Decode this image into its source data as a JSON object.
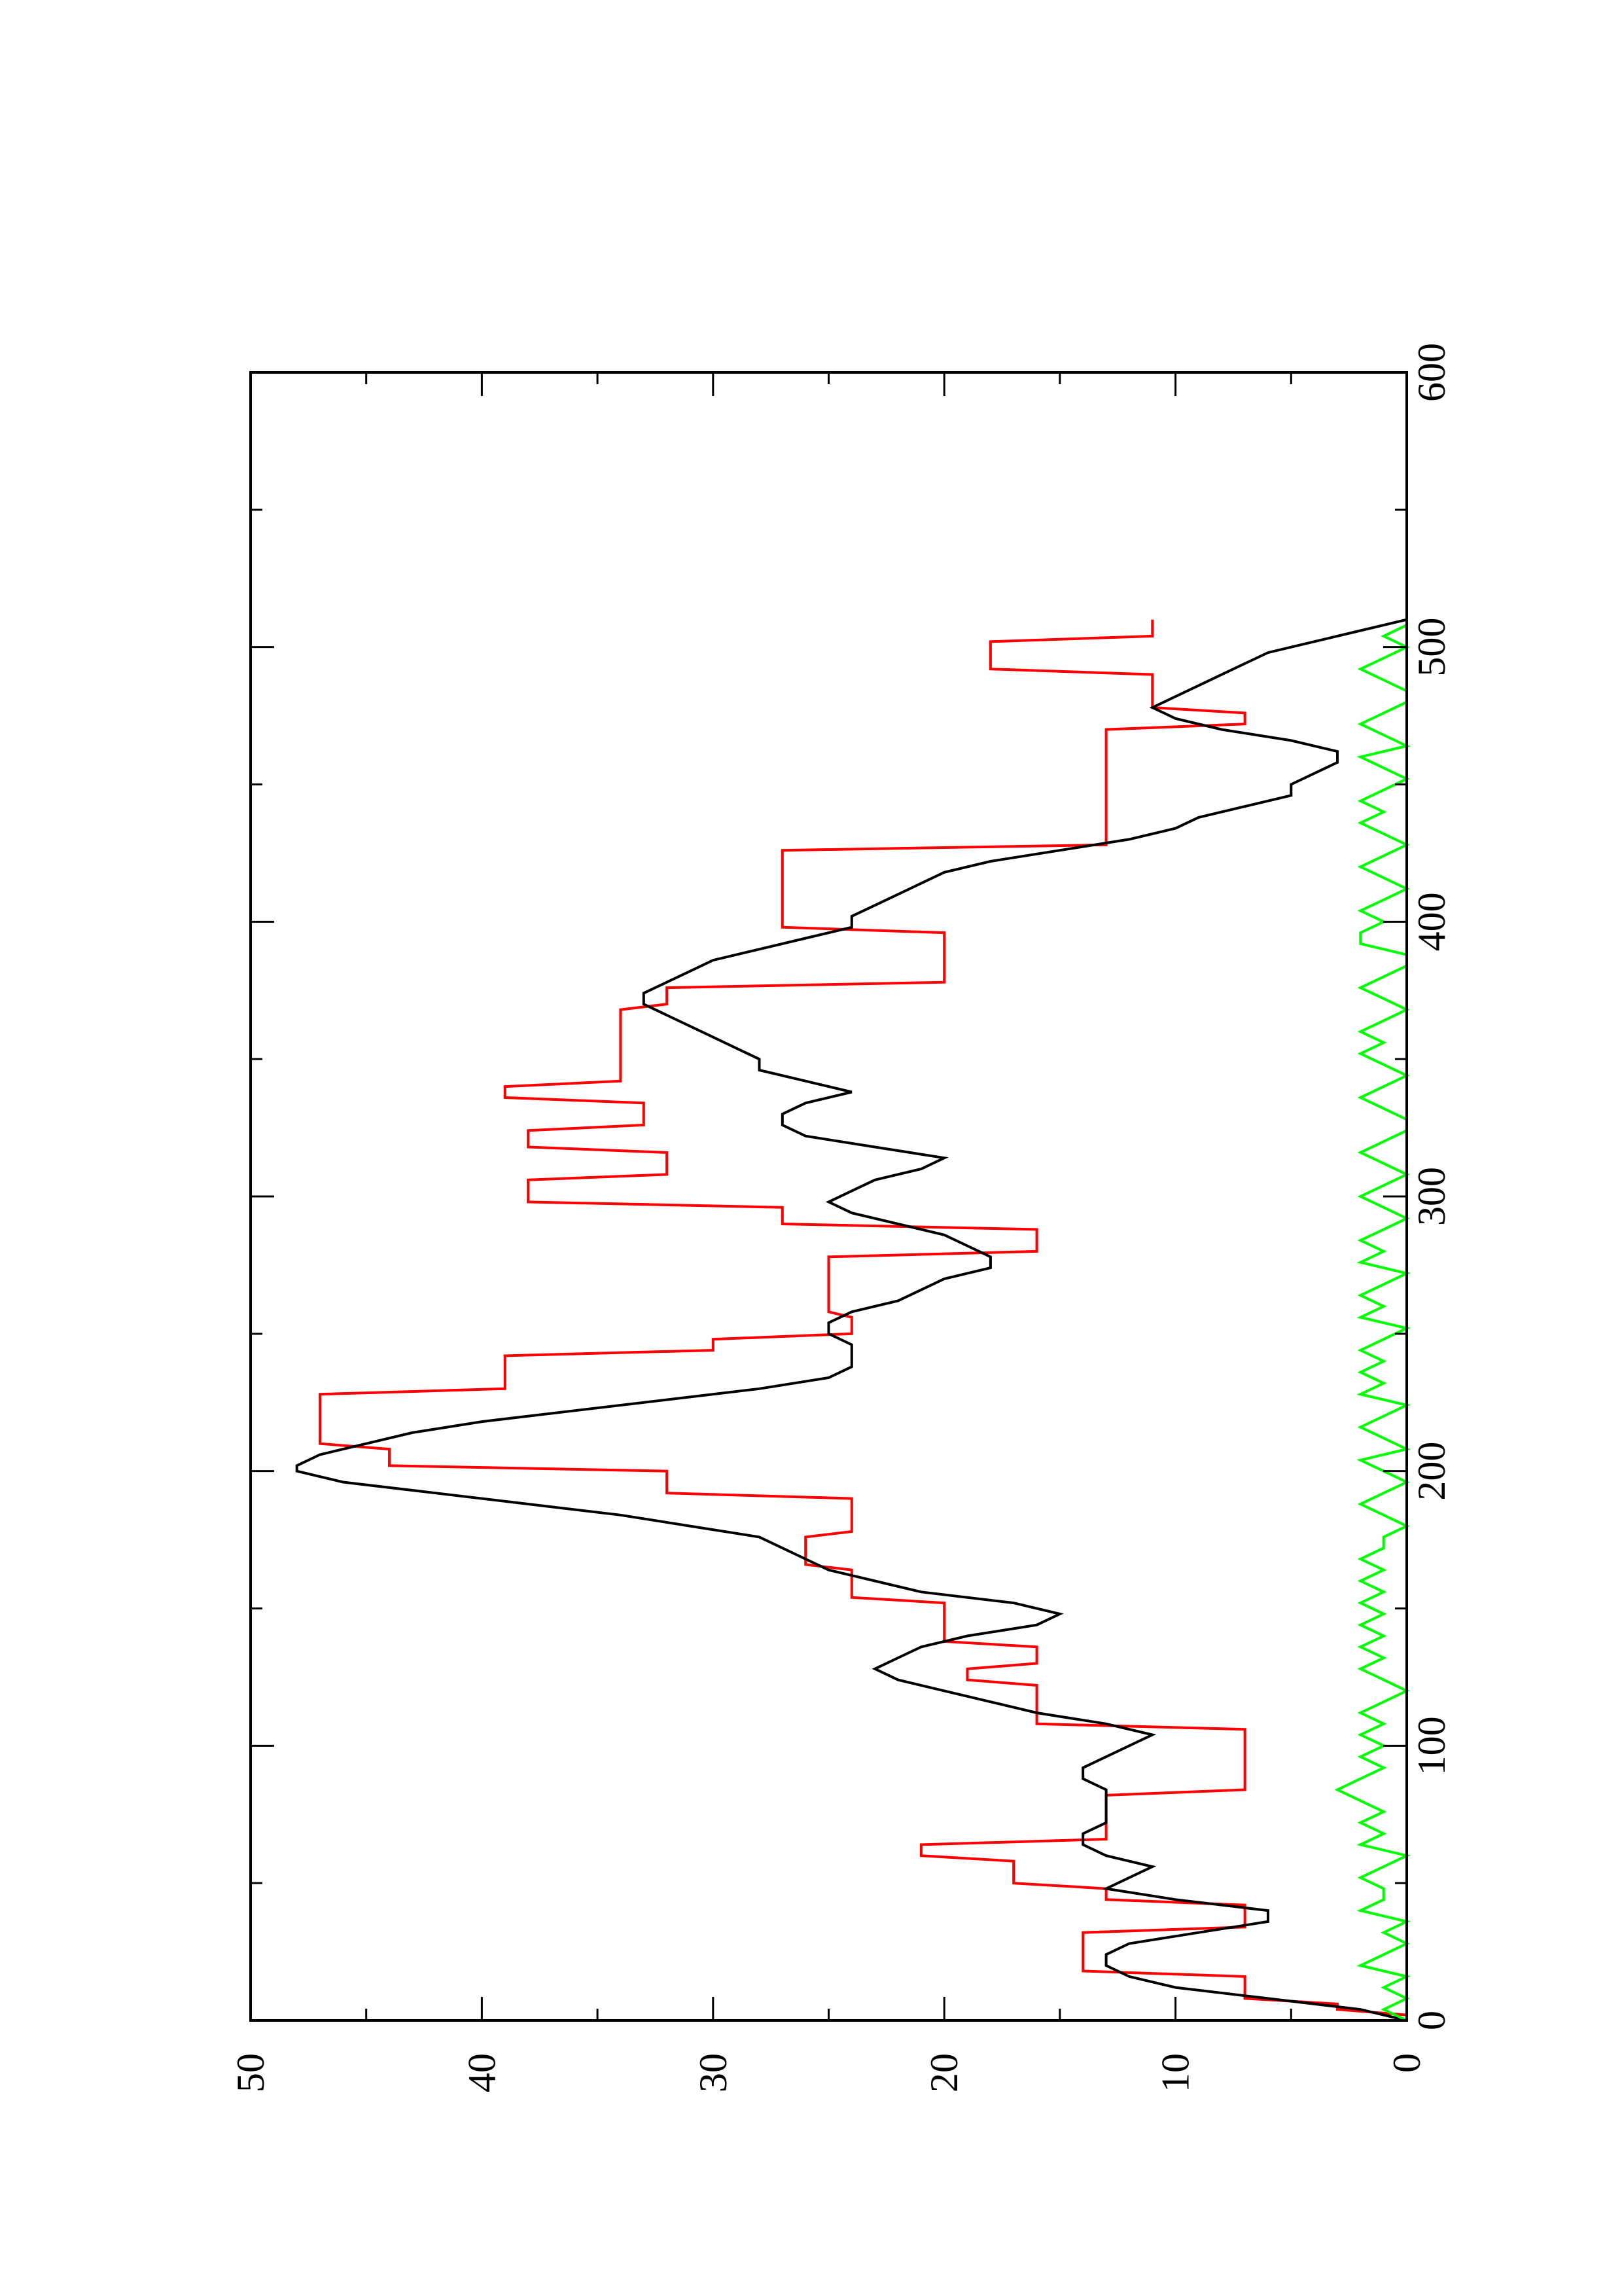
{
  "chart_data": {
    "type": "line",
    "orientation": "rotated-90-ccw",
    "xlim": [
      0,
      600
    ],
    "ylim": [
      0,
      50
    ],
    "x_ticks": [
      0,
      100,
      200,
      300,
      400,
      500,
      600
    ],
    "x_tick_labels": [
      "0",
      "100",
      "200",
      "300",
      "400",
      "500",
      "600"
    ],
    "y_ticks": [
      0,
      10,
      20,
      30,
      40,
      50
    ],
    "y_tick_labels": [
      "0",
      "10",
      "20",
      "30",
      "40",
      "50"
    ],
    "grid": false,
    "legend": "none",
    "series": [
      {
        "color": "#ff0000",
        "step": true,
        "x": [
          0,
          2,
          4,
          6,
          8,
          16,
          18,
          32,
          34,
          42,
          44,
          48,
          50,
          58,
          60,
          64,
          66,
          82,
          84,
          106,
          108,
          122,
          124,
          128,
          130,
          136,
          138,
          152,
          154,
          164,
          166,
          176,
          178,
          190,
          192,
          200,
          202,
          208,
          210,
          228,
          230,
          242,
          244,
          248,
          250,
          256,
          258,
          278,
          280,
          288,
          290,
          296,
          298,
          306,
          308,
          316,
          318,
          324,
          326,
          334,
          336,
          340,
          342,
          368,
          370,
          376,
          378,
          396,
          398,
          404,
          406,
          426,
          428,
          470,
          472,
          476,
          478,
          490,
          492,
          502,
          504,
          510
        ],
        "y": [
          0,
          0,
          3,
          3,
          7,
          7,
          14,
          14,
          7,
          7,
          13,
          13,
          17,
          17,
          21,
          21,
          13,
          13,
          7,
          7,
          16,
          16,
          19,
          19,
          16,
          16,
          20,
          20,
          24,
          24,
          26,
          26,
          24,
          24,
          32,
          32,
          44,
          44,
          47,
          47,
          39,
          39,
          30,
          30,
          24,
          24,
          25,
          25,
          16,
          16,
          27,
          27,
          38,
          38,
          32,
          32,
          38,
          38,
          33,
          33,
          39,
          39,
          34,
          34,
          32,
          32,
          20,
          20,
          27,
          27,
          27,
          27,
          13,
          13,
          7,
          7,
          11,
          11,
          18,
          18,
          11,
          11
        ]
      },
      {
        "color": "#000000",
        "step": false,
        "x": [
          0,
          4,
          8,
          12,
          16,
          20,
          24,
          28,
          32,
          36,
          40,
          44,
          48,
          52,
          56,
          60,
          64,
          68,
          72,
          76,
          80,
          84,
          88,
          92,
          96,
          100,
          104,
          108,
          112,
          116,
          120,
          124,
          128,
          132,
          136,
          140,
          144,
          148,
          152,
          156,
          160,
          164,
          168,
          172,
          176,
          180,
          184,
          188,
          192,
          196,
          200,
          202,
          206,
          210,
          214,
          218,
          222,
          226,
          230,
          234,
          238,
          242,
          246,
          250,
          254,
          258,
          262,
          266,
          270,
          274,
          278,
          282,
          286,
          290,
          294,
          298,
          302,
          306,
          310,
          314,
          318,
          322,
          326,
          330,
          334,
          338,
          342,
          346,
          350,
          354,
          358,
          362,
          366,
          370,
          374,
          378,
          382,
          386,
          390,
          394,
          398,
          402,
          406,
          410,
          414,
          418,
          422,
          426,
          430,
          434,
          438,
          442,
          446,
          450,
          454,
          458,
          462,
          466,
          470,
          474,
          478,
          482,
          486,
          490,
          494,
          498,
          502,
          506,
          510
        ],
        "y": [
          0,
          2,
          6,
          10,
          12,
          13,
          13,
          12,
          9,
          6,
          6,
          10,
          13,
          12,
          11,
          13,
          14,
          14,
          13,
          13,
          13,
          13,
          14,
          14,
          13,
          12,
          11,
          13,
          16,
          18,
          20,
          22,
          23,
          22,
          21,
          19,
          16,
          15,
          17,
          21,
          23,
          25,
          26,
          27,
          28,
          31,
          34,
          38,
          42,
          46,
          48,
          48,
          47,
          45,
          43,
          40,
          36,
          32,
          28,
          25,
          24,
          24,
          24,
          25,
          25,
          24,
          22,
          21,
          20,
          18,
          18,
          19,
          20,
          22,
          24,
          25,
          24,
          23,
          21,
          20,
          23,
          26,
          27,
          27,
          26,
          24,
          26,
          28,
          28,
          29,
          30,
          31,
          32,
          33,
          33,
          32,
          31,
          30,
          28,
          26,
          24,
          24,
          23,
          22,
          21,
          20,
          18,
          15,
          12,
          10,
          9,
          7,
          5,
          5,
          4,
          3,
          3,
          5,
          8,
          10,
          11,
          10,
          9,
          8,
          7,
          6,
          4,
          2,
          0
        ]
      },
      {
        "color": "#00ff00",
        "step": false,
        "x": [
          0,
          4,
          8,
          12,
          16,
          20,
          24,
          28,
          32,
          36,
          40,
          44,
          48,
          52,
          56,
          60,
          64,
          68,
          72,
          76,
          80,
          84,
          88,
          92,
          96,
          100,
          104,
          108,
          112,
          116,
          120,
          124,
          128,
          132,
          136,
          140,
          144,
          148,
          152,
          156,
          160,
          164,
          168,
          172,
          176,
          180,
          184,
          188,
          192,
          196,
          200,
          204,
          208,
          212,
          216,
          220,
          224,
          228,
          232,
          236,
          240,
          244,
          248,
          252,
          256,
          260,
          264,
          268,
          272,
          276,
          280,
          284,
          288,
          292,
          296,
          300,
          304,
          308,
          312,
          316,
          320,
          324,
          328,
          332,
          336,
          340,
          344,
          348,
          352,
          356,
          360,
          364,
          368,
          372,
          376,
          380,
          384,
          388,
          392,
          396,
          400,
          404,
          408,
          412,
          416,
          420,
          424,
          428,
          432,
          436,
          440,
          444,
          448,
          452,
          456,
          460,
          464,
          468,
          472,
          476,
          480,
          484,
          488,
          492,
          496,
          500,
          504,
          508,
          510
        ],
        "y": [
          0,
          1,
          0,
          1,
          0,
          2,
          1,
          0,
          1,
          0,
          2,
          1,
          1,
          2,
          1,
          0,
          2,
          1,
          2,
          1,
          2,
          3,
          2,
          1,
          2,
          1,
          2,
          1,
          2,
          1,
          0,
          1,
          2,
          1,
          2,
          1,
          2,
          1,
          2,
          1,
          2,
          1,
          2,
          1,
          1,
          0,
          1,
          2,
          1,
          0,
          1,
          2,
          0,
          1,
          2,
          1,
          0,
          2,
          1,
          2,
          1,
          2,
          1,
          0,
          2,
          1,
          2,
          1,
          0,
          2,
          1,
          2,
          1,
          0,
          1,
          2,
          1,
          0,
          1,
          2,
          1,
          0,
          0,
          1,
          2,
          1,
          0,
          1,
          2,
          1,
          2,
          1,
          0,
          1,
          2,
          1,
          0,
          0,
          2,
          2,
          1,
          2,
          1,
          0,
          1,
          2,
          1,
          0,
          1,
          2,
          1,
          2,
          1,
          0,
          1,
          2,
          0,
          1,
          2,
          1,
          0,
          0,
          1,
          2,
          1,
          0,
          1,
          0,
          0
        ]
      }
    ]
  }
}
